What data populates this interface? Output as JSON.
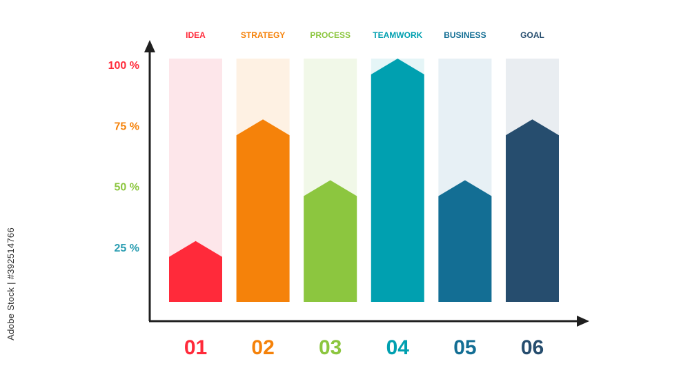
{
  "chart_data": {
    "type": "bar",
    "categories": [
      "IDEA",
      "STRATEGY",
      "PROCESS",
      "TEAMWORK",
      "BUSINESS",
      "GOAL"
    ],
    "numbers": [
      "01",
      "02",
      "03",
      "04",
      "05",
      "06"
    ],
    "values": [
      25,
      75,
      50,
      100,
      50,
      75
    ],
    "colors": [
      "#ff2a3a",
      "#f5820a",
      "#8cc63f",
      "#00a0b0",
      "#136e94",
      "#264d6e"
    ],
    "track_colors": [
      "#fde6ea",
      "#fef1e3",
      "#f1f8e8",
      "#e5f5f7",
      "#e7f0f5",
      "#e9edf1"
    ],
    "yticks": [
      {
        "value": 25,
        "label": "25 %",
        "color": "#2a9db1"
      },
      {
        "value": 50,
        "label": "50 %",
        "color": "#8cc63f"
      },
      {
        "value": 75,
        "label": "75 %",
        "color": "#f5820a"
      },
      {
        "value": 100,
        "label": "100 %",
        "color": "#ff2a3a"
      }
    ],
    "ylim": [
      0,
      100
    ],
    "axis_color": "#1f1f1f",
    "title": "",
    "xlabel": "",
    "ylabel": ""
  },
  "watermark": {
    "stock_id": "Adobe Stock | #392514766"
  }
}
